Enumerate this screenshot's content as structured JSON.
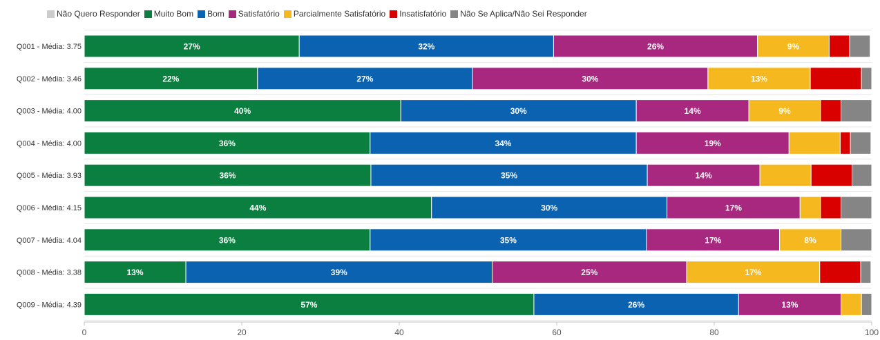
{
  "chart_data": {
    "type": "bar",
    "orientation": "horizontal",
    "stacked": true,
    "xlim": [
      0,
      100
    ],
    "xticks": [
      0,
      20,
      40,
      60,
      80,
      100
    ],
    "grid": true,
    "legend_position": "top-left",
    "categories": [
      "Q001 - Média: 3.75",
      "Q002 - Média: 3.46",
      "Q003 - Média: 4.00",
      "Q004 - Média: 4.00",
      "Q005 - Média: 3.93",
      "Q006 - Média: 4.15",
      "Q007 - Média: 4.04",
      "Q008 - Média: 3.38",
      "Q009 - Média: 4.39"
    ],
    "series": [
      {
        "name": "Não Quero Responder",
        "color": "#cccccc",
        "values": [
          0,
          0,
          0,
          0,
          0,
          0,
          0,
          0,
          0
        ],
        "labels": [
          "",
          "",
          "",
          "",
          "",
          "",
          "",
          "",
          ""
        ]
      },
      {
        "name": "Muito Bom",
        "color": "#0a7f3f",
        "values": [
          27.3,
          22.0,
          40.2,
          36.3,
          36.4,
          44.1,
          36.3,
          12.9,
          57.1
        ],
        "labels": [
          "27%",
          "22%",
          "40%",
          "36%",
          "36%",
          "44%",
          "36%",
          "13%",
          "57%"
        ]
      },
      {
        "name": "Bom",
        "color": "#0b62b0",
        "values": [
          32.3,
          27.3,
          29.9,
          33.8,
          35.1,
          29.9,
          35.1,
          38.9,
          26.0
        ],
        "labels": [
          "32%",
          "27%",
          "30%",
          "34%",
          "35%",
          "30%",
          "35%",
          "39%",
          "26%"
        ]
      },
      {
        "name": "Satisfatório",
        "color": "#a8287f",
        "values": [
          25.9,
          29.9,
          14.3,
          19.4,
          14.3,
          16.9,
          16.9,
          24.7,
          13.0
        ],
        "labels": [
          "26%",
          "30%",
          "14%",
          "19%",
          "14%",
          "17%",
          "17%",
          "25%",
          "13%"
        ]
      },
      {
        "name": "Parcialmente Satisfatório",
        "color": "#f5b81f",
        "values": [
          9.1,
          13.0,
          9.1,
          6.5,
          6.5,
          2.6,
          7.8,
          16.9,
          2.6
        ],
        "labels": [
          "9%",
          "13%",
          "9%",
          "",
          "",
          "",
          "8%",
          "17%",
          ""
        ]
      },
      {
        "name": "Insatisfatório",
        "color": "#d90000",
        "values": [
          2.6,
          6.5,
          2.6,
          1.3,
          5.2,
          2.6,
          0,
          5.2,
          0
        ],
        "labels": [
          "",
          "",
          "",
          "",
          "",
          "",
          "",
          "",
          ""
        ]
      },
      {
        "name": "Não Se Aplica/Não Sei Responder",
        "color": "#858585",
        "values": [
          2.6,
          1.3,
          3.9,
          2.6,
          2.5,
          3.9,
          3.9,
          1.3,
          1.3
        ],
        "labels": [
          "",
          "",
          "",
          "",
          "",
          "",
          "",
          "",
          ""
        ]
      }
    ]
  }
}
